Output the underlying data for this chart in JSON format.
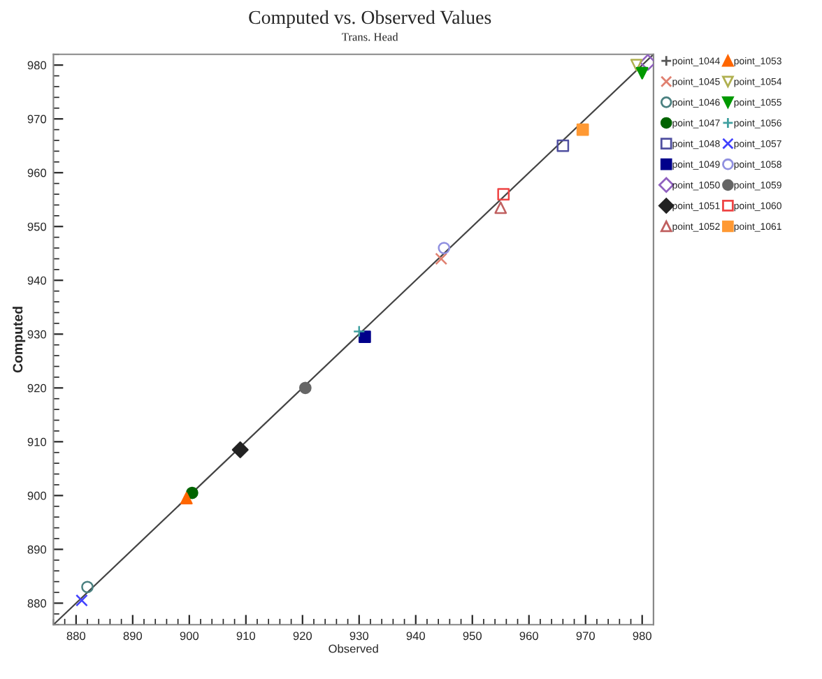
{
  "chart_data": {
    "type": "scatter",
    "title": "Computed vs. Observed Values",
    "subtitle": "Trans. Head",
    "xlabel": "Observed",
    "ylabel": "Computed",
    "xlim": [
      876,
      982
    ],
    "ylim": [
      876,
      982
    ],
    "xticks": [
      880,
      890,
      900,
      910,
      920,
      930,
      940,
      950,
      960,
      970,
      980
    ],
    "yticks": [
      880,
      890,
      900,
      910,
      920,
      930,
      940,
      950,
      960,
      970,
      980
    ],
    "grid": false,
    "legend": "right",
    "series": [
      {
        "type": "line",
        "color": "#444444",
        "x": [
          876,
          982
        ],
        "values": [
          876,
          982
        ],
        "marker": "none",
        "line_style": "solid"
      },
      {
        "name": "point_1044",
        "color": "#555555",
        "marker": "plus"
      },
      {
        "name": "point_1045",
        "color": "#e08070",
        "marker": "x",
        "x": [
          944.5
        ],
        "values": [
          944
        ]
      },
      {
        "name": "point_1046",
        "color": "#4a8080",
        "marker": "circle-open",
        "x": [
          882
        ],
        "values": [
          883
        ]
      },
      {
        "name": "point_1047",
        "color": "#006400",
        "marker": "circle",
        "x": [
          900.5
        ],
        "values": [
          900.5
        ]
      },
      {
        "name": "point_1048",
        "color": "#5050a0",
        "marker": "square-open",
        "x": [
          966
        ],
        "values": [
          965
        ]
      },
      {
        "name": "point_1049",
        "color": "#00008b",
        "marker": "square",
        "x": [
          931
        ],
        "values": [
          929.5
        ]
      },
      {
        "name": "point_1050",
        "color": "#9060c0",
        "marker": "diamond-open",
        "x": [
          981
        ],
        "values": [
          980.5
        ]
      },
      {
        "name": "point_1051",
        "color": "#222222",
        "marker": "diamond",
        "x": [
          909
        ],
        "values": [
          908.5
        ]
      },
      {
        "name": "point_1052",
        "color": "#c06060",
        "marker": "triangle-open",
        "x": [
          955
        ],
        "values": [
          953.5
        ]
      },
      {
        "name": "point_1053",
        "color": "#ff6600",
        "marker": "triangle",
        "x": [
          899.5
        ],
        "values": [
          899.5
        ]
      },
      {
        "name": "point_1054",
        "color": "#b0b050",
        "marker": "triangle_down-open",
        "x": [
          979
        ],
        "values": [
          980
        ]
      },
      {
        "name": "point_1055",
        "color": "#009900",
        "marker": "triangle_down",
        "x": [
          980
        ],
        "values": [
          978.5
        ]
      },
      {
        "name": "point_1056",
        "color": "#40a0a0",
        "marker": "plus",
        "x": [
          930
        ],
        "values": [
          930.5
        ]
      },
      {
        "name": "point_1057",
        "color": "#4040ff",
        "marker": "x",
        "x": [
          881
        ],
        "values": [
          880.5
        ]
      },
      {
        "name": "point_1058",
        "color": "#9090e0",
        "marker": "circle-open",
        "x": [
          945
        ],
        "values": [
          946
        ]
      },
      {
        "name": "point_1059",
        "color": "#666666",
        "marker": "circle",
        "x": [
          920.5
        ],
        "values": [
          920
        ]
      },
      {
        "name": "point_1060",
        "color": "#ee4444",
        "marker": "square-open",
        "x": [
          955.5
        ],
        "values": [
          956
        ]
      },
      {
        "name": "point_1061",
        "color": "#ff9933",
        "marker": "square",
        "x": [
          969.5
        ],
        "values": [
          968
        ]
      }
    ]
  }
}
